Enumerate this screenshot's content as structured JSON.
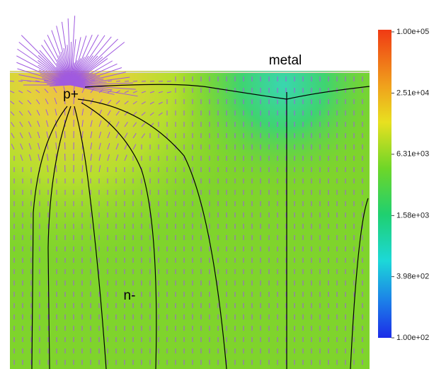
{
  "labels": {
    "metal": "metal",
    "p_plus": "p+",
    "n_minus": "n-"
  },
  "colorbar": {
    "log": true,
    "range": [
      100,
      100000
    ],
    "ticks": [
      {
        "value": 100000,
        "label": "1.00e+05"
      },
      {
        "value": 25100,
        "label": "2.51e+04"
      },
      {
        "value": 6310,
        "label": "6.31e+03"
      },
      {
        "value": 1580,
        "label": "1.58e+03"
      },
      {
        "value": 398,
        "label": "3.98e+02"
      },
      {
        "value": 100,
        "label": "1.00e+02"
      }
    ]
  }
}
